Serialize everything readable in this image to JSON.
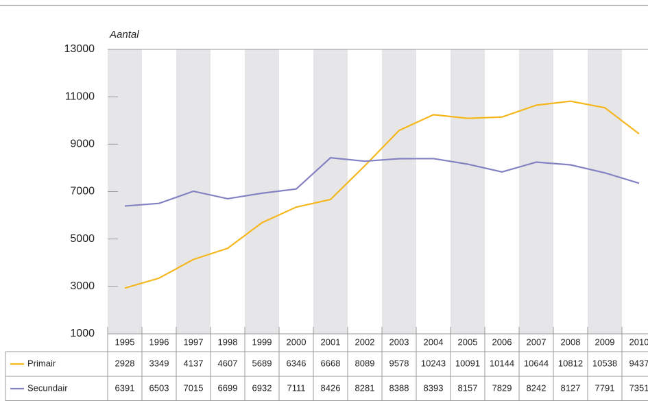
{
  "chart_data": {
    "type": "line",
    "y_label": "Aantal",
    "categories": [
      "1995",
      "1996",
      "1997",
      "1998",
      "1999",
      "2000",
      "2001",
      "2002",
      "2003",
      "2004",
      "2005",
      "2006",
      "2007",
      "2008",
      "2009",
      "2010"
    ],
    "series": [
      {
        "name": "Primair",
        "color": "#f6b71e",
        "values": [
          2928,
          3349,
          4137,
          4607,
          5689,
          6346,
          6668,
          8089,
          9578,
          10243,
          10091,
          10144,
          10644,
          10812,
          10538,
          9437
        ]
      },
      {
        "name": "Secundair",
        "color": "#8381c2",
        "values": [
          6391,
          6503,
          7015,
          6699,
          6932,
          7111,
          8426,
          8281,
          8388,
          8393,
          8157,
          7829,
          8242,
          8127,
          7791,
          7351
        ]
      }
    ],
    "ylim": [
      1000,
      13000
    ],
    "yticks": [
      1000,
      3000,
      5000,
      7000,
      9000,
      11000,
      13000
    ],
    "bands": true
  }
}
